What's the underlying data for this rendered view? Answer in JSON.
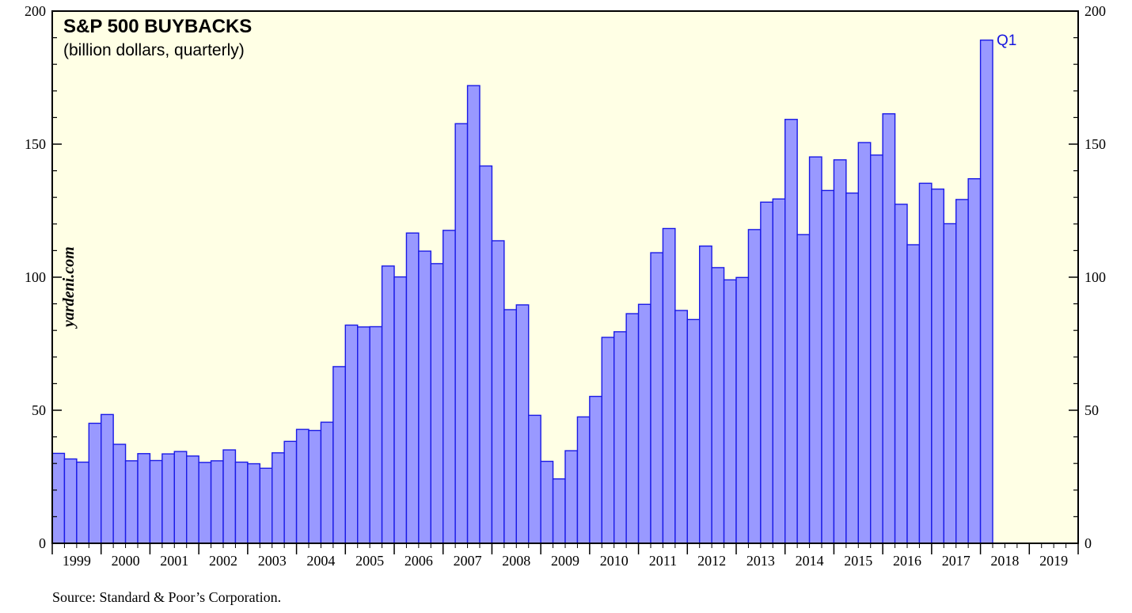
{
  "chart_data": {
    "type": "bar",
    "title": "S&P 500 BUYBACKS",
    "subtitle": "(billion dollars, quarterly)",
    "watermark": "yardeni.com",
    "source": "Source: Standard & Poor’s Corporation.",
    "annotation": "Q1",
    "ylim": [
      0,
      200
    ],
    "yticks": [
      0,
      50,
      100,
      150,
      200
    ],
    "ytick_labels": [
      "0",
      "50",
      "100",
      "150",
      "200"
    ],
    "years": [
      "1999",
      "2000",
      "2001",
      "2002",
      "2003",
      "2004",
      "2005",
      "2006",
      "2007",
      "2008",
      "2009",
      "2010",
      "2011",
      "2012",
      "2013",
      "2014",
      "2015",
      "2016",
      "2017",
      "2018",
      "2019"
    ],
    "quarters_per_year": 4,
    "grid": false,
    "colors": {
      "background": "#ffffe5",
      "bar_fill": "#9999ff",
      "bar_edge": "#1a1ae6",
      "annotation": "#1515e0"
    },
    "values": [
      33.8,
      31.7,
      30.5,
      45.1,
      48.4,
      37.2,
      31.0,
      33.7,
      31.1,
      33.6,
      34.5,
      32.8,
      30.4,
      31.0,
      35.1,
      30.5,
      29.9,
      28.2,
      34.0,
      38.3,
      42.8,
      42.4,
      45.5,
      66.4,
      82.0,
      81.3,
      81.4,
      104.2,
      100.1,
      116.6,
      109.8,
      105.1,
      117.6,
      157.7,
      172.0,
      141.8,
      113.7,
      87.8,
      89.6,
      48.1,
      30.8,
      24.2,
      34.8,
      47.5,
      55.2,
      77.4,
      79.5,
      86.3,
      89.8,
      109.2,
      118.3,
      87.5,
      84.1,
      111.7,
      103.6,
      99.0,
      99.9,
      117.9,
      128.2,
      129.4,
      159.3,
      116.0,
      145.2,
      132.6,
      144.1,
      131.6,
      150.6,
      145.9,
      161.4,
      127.4,
      112.2,
      135.3,
      133.1,
      120.1,
      129.2,
      137.0,
      189.1
    ]
  }
}
